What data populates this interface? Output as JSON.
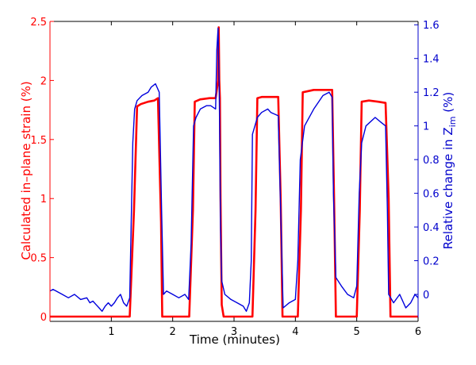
{
  "chart_data": {
    "type": "line",
    "xlabel": "Time (minutes)",
    "xlim": [
      0,
      6
    ],
    "x_ticks": [
      1,
      2,
      3,
      4,
      5,
      6
    ],
    "left_axis": {
      "label": "Calculated in–plane strain (%)",
      "color": "#ff0000",
      "ylim": [
        -0.04,
        2.5
      ],
      "ticks": [
        0,
        0.5,
        1,
        1.5,
        2,
        2.5
      ],
      "tick_labels": [
        "0",
        "0.5",
        "1",
        "1.5",
        "2",
        "2.5"
      ]
    },
    "right_axis": {
      "label_main": "Relative change in Z",
      "label_sub": "im",
      "label_unit": " (%)",
      "color": "#0000cc",
      "ylim": [
        -0.16,
        1.62
      ],
      "ticks": [
        0,
        0.2,
        0.4,
        0.6,
        0.8,
        1,
        1.2,
        1.4,
        1.6
      ],
      "tick_labels": [
        "0",
        "0.2",
        "0.4",
        "0.6",
        "0.8",
        "1",
        "1.2",
        "1.4",
        "1.6"
      ]
    },
    "series": [
      {
        "axis": "left",
        "color": "#ff0000",
        "x": [
          0,
          1.3,
          1.37,
          1.42,
          1.48,
          1.6,
          1.7,
          1.76,
          1.81,
          1.83,
          2.27,
          2.33,
          2.36,
          2.45,
          2.6,
          2.7,
          2.74,
          2.75,
          2.76,
          2.77,
          2.78,
          2.8,
          2.83,
          3.3,
          3.35,
          3.38,
          3.45,
          3.6,
          3.72,
          3.76,
          3.79,
          4.04,
          4.09,
          4.12,
          4.3,
          4.5,
          4.6,
          4.63,
          4.66,
          5.0,
          5.05,
          5.08,
          5.2,
          5.35,
          5.47,
          5.52,
          5.55,
          6.0
        ],
        "values": [
          0,
          0,
          0.9,
          1.78,
          1.8,
          1.82,
          1.83,
          1.85,
          0.8,
          0,
          0,
          0.9,
          1.82,
          1.84,
          1.85,
          1.85,
          2.0,
          2.45,
          2.0,
          1.85,
          1.0,
          0.1,
          0,
          0,
          0.9,
          1.85,
          1.86,
          1.86,
          1.86,
          1.0,
          0,
          0,
          0.9,
          1.9,
          1.92,
          1.92,
          1.92,
          1.0,
          0,
          0,
          0.9,
          1.82,
          1.83,
          1.82,
          1.81,
          1.0,
          0,
          0
        ]
      },
      {
        "axis": "right",
        "color": "#0000dd",
        "x": [
          0,
          0.05,
          0.1,
          0.2,
          0.3,
          0.4,
          0.5,
          0.6,
          0.65,
          0.7,
          0.75,
          0.8,
          0.85,
          0.9,
          0.95,
          1.0,
          1.05,
          1.1,
          1.15,
          1.2,
          1.25,
          1.3,
          1.35,
          1.38,
          1.42,
          1.5,
          1.6,
          1.65,
          1.72,
          1.78,
          1.82,
          1.85,
          1.9,
          2.0,
          2.1,
          2.2,
          2.26,
          2.3,
          2.34,
          2.38,
          2.45,
          2.55,
          2.62,
          2.7,
          2.72,
          2.74,
          2.76,
          2.78,
          2.8,
          2.85,
          2.95,
          3.05,
          3.15,
          3.2,
          3.25,
          3.28,
          3.3,
          3.34,
          3.38,
          3.45,
          3.55,
          3.6,
          3.66,
          3.72,
          3.76,
          3.8,
          3.9,
          4.0,
          4.04,
          4.08,
          4.15,
          4.3,
          4.45,
          4.55,
          4.6,
          4.62,
          4.66,
          4.75,
          4.85,
          4.95,
          5.0,
          5.04,
          5.08,
          5.15,
          5.3,
          5.4,
          5.47,
          5.5,
          5.52,
          5.6,
          5.7,
          5.8,
          5.88,
          5.95,
          6.0
        ],
        "values": [
          0.02,
          0.03,
          0.02,
          0.0,
          -0.02,
          0.0,
          -0.03,
          -0.02,
          -0.05,
          -0.04,
          -0.06,
          -0.08,
          -0.1,
          -0.07,
          -0.05,
          -0.07,
          -0.05,
          -0.02,
          0.0,
          -0.05,
          -0.07,
          -0.02,
          0.9,
          1.1,
          1.15,
          1.18,
          1.2,
          1.23,
          1.25,
          1.2,
          0.5,
          0.0,
          0.02,
          0.0,
          -0.02,
          0.0,
          -0.03,
          0.3,
          1.0,
          1.05,
          1.1,
          1.12,
          1.12,
          1.1,
          1.45,
          1.58,
          1.2,
          0.4,
          0.08,
          0.0,
          -0.03,
          -0.05,
          -0.07,
          -0.1,
          -0.05,
          0.2,
          0.95,
          1.0,
          1.05,
          1.08,
          1.1,
          1.08,
          1.07,
          1.06,
          0.5,
          -0.08,
          -0.05,
          -0.03,
          0.2,
          0.8,
          1.0,
          1.1,
          1.18,
          1.2,
          1.17,
          0.6,
          0.1,
          0.05,
          0.0,
          -0.02,
          0.05,
          0.6,
          0.9,
          1.0,
          1.05,
          1.02,
          1.0,
          0.5,
          0.0,
          -0.05,
          0.0,
          -0.08,
          -0.05,
          0.0,
          -0.02
        ]
      }
    ]
  }
}
